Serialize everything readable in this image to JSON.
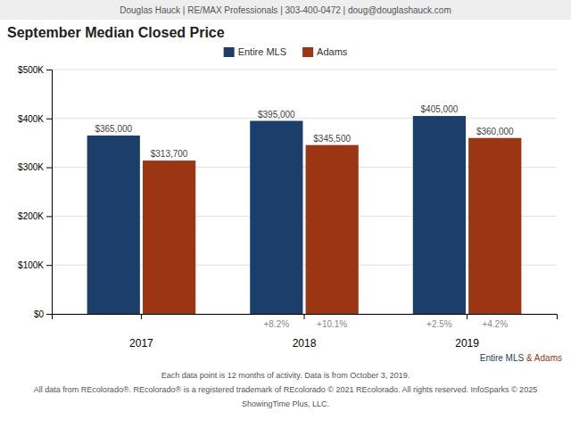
{
  "chart_data": {
    "type": "bar",
    "title": "September Median Closed Price",
    "categories": [
      "2017",
      "2018",
      "2019"
    ],
    "series": [
      {
        "name": "Entire MLS",
        "color": "#1b3f6a",
        "values": [
          365000,
          395000,
          405000
        ],
        "value_labels": [
          "$365,000",
          "$395,000",
          "$405,000"
        ],
        "change_labels": [
          null,
          "+8.2%",
          "+2.5%"
        ]
      },
      {
        "name": "Adams",
        "color": "#9b3513",
        "values": [
          313700,
          345500,
          360000
        ],
        "value_labels": [
          "$313,700",
          "$345,500",
          "$360,000"
        ],
        "change_labels": [
          null,
          "+10.1%",
          "+4.2%"
        ]
      }
    ],
    "ylim": [
      0,
      500000
    ],
    "yticks": [
      {
        "value": 0,
        "label": "$0"
      },
      {
        "value": 100000,
        "label": "$100K"
      },
      {
        "value": 200000,
        "label": "$200K"
      },
      {
        "value": 300000,
        "label": "$300K"
      },
      {
        "value": 400000,
        "label": "$400K"
      },
      {
        "value": 500000,
        "label": "$500K"
      }
    ],
    "grid": true,
    "legend": "top",
    "data_labels": true,
    "annotations": [
      {
        "text": "Douglas Hauck | RE/MAX Professionals | 303-400-0472 | doug@douglashauck.com"
      },
      {
        "text": "Entire MLS ",
        "color": "#1b3f6a"
      },
      {
        "text": "& Adams",
        "color": "#9b3513"
      },
      {
        "text": "Each data point is 12 months of activity. Data is from October 3, 2019."
      },
      {
        "text": "All data from REcolorado®. REcolorado® is a registered trademark of REcolorado © 2021 REcolorado. All rights reserved. InfoSparks © 2025"
      },
      {
        "text": "ShowingTime Plus, LLC."
      }
    ]
  }
}
